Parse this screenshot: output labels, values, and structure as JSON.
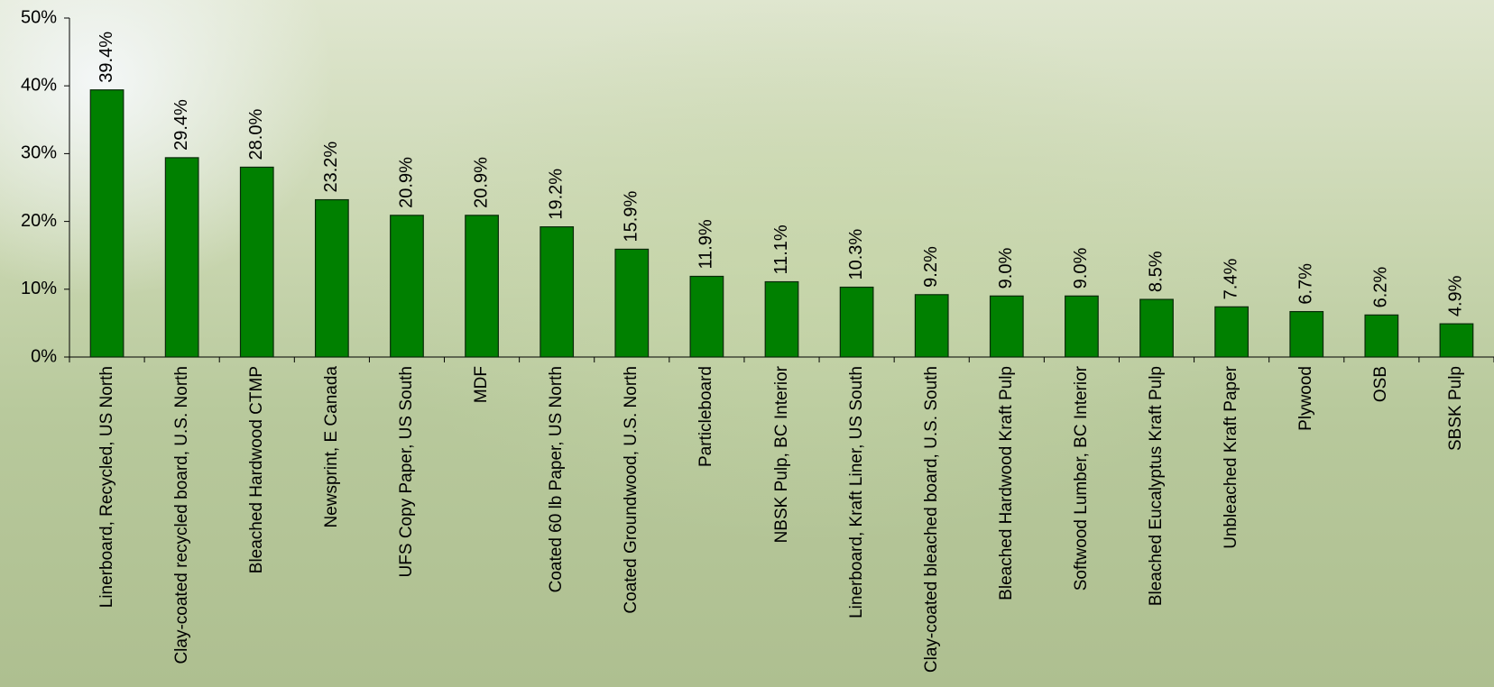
{
  "chart_data": {
    "type": "bar",
    "categories": [
      "Linerboard, Recycled, US North",
      "Clay-coated recycled board, U.S. North",
      "Bleached Hardwood CTMP",
      "Newsprint, E Canada",
      "UFS Copy Paper, US South",
      "MDF",
      "Coated 60 lb Paper, US North",
      "Coated Groundwood, U.S. North",
      "Particleboard",
      "NBSK Pulp, BC Interior",
      "Linerboard, Kraft Liner, US South",
      "Clay-coated bleached board, U.S. South",
      "Bleached Hardwood Kraft Pulp",
      "Softwood Lumber, BC Interior",
      "Bleached Eucalyptus Kraft Pulp",
      "Unbleached Kraft Paper",
      "Plywood",
      "OSB",
      "SBSK Pulp"
    ],
    "values": [
      39.4,
      29.4,
      28.0,
      23.2,
      20.9,
      20.9,
      19.2,
      15.9,
      11.9,
      11.1,
      10.3,
      9.2,
      9.0,
      9.0,
      8.5,
      7.4,
      6.7,
      6.2,
      4.9
    ],
    "value_labels": [
      "39.4%",
      "29.4%",
      "28.0%",
      "23.2%",
      "20.9%",
      "20.9%",
      "19.2%",
      "15.9%",
      "11.9%",
      "11.1%",
      "10.3%",
      "9.2%",
      "9.0%",
      "9.0%",
      "8.5%",
      "7.4%",
      "6.7%",
      "6.2%",
      "4.9%"
    ],
    "color": "#008000",
    "ylim": [
      0,
      50
    ],
    "yticks": [
      {
        "value": 0,
        "label": "0%"
      },
      {
        "value": 10,
        "label": "10%"
      },
      {
        "value": 20,
        "label": "20%"
      },
      {
        "value": 30,
        "label": "30%"
      },
      {
        "value": 40,
        "label": "40%"
      },
      {
        "value": 50,
        "label": "50%"
      }
    ]
  }
}
